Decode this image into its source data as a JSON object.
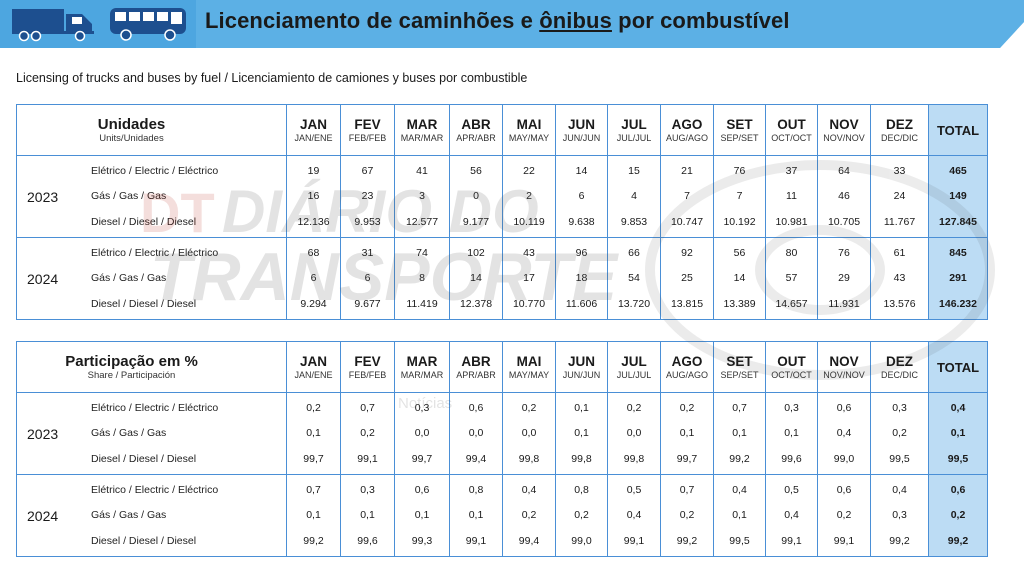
{
  "header": {
    "title_before": "Licenciamento de caminhões e ",
    "title_highlight": "ônibus",
    "title_after": " por combustível",
    "icons": [
      "truck-icon",
      "bus-icon"
    ],
    "band_color": "#4da6e0"
  },
  "subtitle": "Licensing of trucks and buses by fuel / Licenciamiento de camiones y buses por combustible",
  "watermark": {
    "line1": "DIÁRIO DO",
    "line2": "TRANSPORTE",
    "line3": "Notícias"
  },
  "months": [
    {
      "main": "JAN",
      "sub": "JAN/ENE"
    },
    {
      "main": "FEV",
      "sub": "FEB/FEB"
    },
    {
      "main": "MAR",
      "sub": "MAR/MAR"
    },
    {
      "main": "ABR",
      "sub": "APR/ABR"
    },
    {
      "main": "MAI",
      "sub": "MAY/MAY"
    },
    {
      "main": "JUN",
      "sub": "JUN/JUN"
    },
    {
      "main": "JUL",
      "sub": "JUL/JUL"
    },
    {
      "main": "AGO",
      "sub": "AUG/AGO"
    },
    {
      "main": "SET",
      "sub": "SEP/SET"
    },
    {
      "main": "OUT",
      "sub": "OCT/OCT"
    },
    {
      "main": "NOV",
      "sub": "NOV/NOV"
    },
    {
      "main": "DEZ",
      "sub": "DEC/DIC"
    }
  ],
  "total_label": "TOTAL",
  "fuels": [
    "Elétrico / Electric / Eléctrico",
    "Gás / Gas / Gas",
    "Diesel / Diesel / Diesel"
  ],
  "units_table": {
    "title": "Unidades",
    "subtitle": "Units/Unidades",
    "rows": [
      {
        "year": "2023",
        "values": [
          [
            "19",
            "67",
            "41",
            "56",
            "22",
            "14",
            "15",
            "21",
            "76",
            "37",
            "64",
            "33"
          ],
          [
            "16",
            "23",
            "3",
            "0",
            "2",
            "6",
            "4",
            "7",
            "7",
            "11",
            "46",
            "24"
          ],
          [
            "12.136",
            "9.953",
            "12.577",
            "9.177",
            "10.119",
            "9.638",
            "9.853",
            "10.747",
            "10.192",
            "10.981",
            "10.705",
            "11.767"
          ]
        ],
        "totals": [
          "465",
          "149",
          "127.845"
        ]
      },
      {
        "year": "2024",
        "values": [
          [
            "68",
            "31",
            "74",
            "102",
            "43",
            "96",
            "66",
            "92",
            "56",
            "80",
            "76",
            "61"
          ],
          [
            "6",
            "6",
            "8",
            "14",
            "17",
            "18",
            "54",
            "25",
            "14",
            "57",
            "29",
            "43"
          ],
          [
            "9.294",
            "9.677",
            "11.419",
            "12.378",
            "10.770",
            "11.606",
            "13.720",
            "13.815",
            "13.389",
            "14.657",
            "11.931",
            "13.576"
          ]
        ],
        "totals": [
          "845",
          "291",
          "146.232"
        ]
      }
    ]
  },
  "share_table": {
    "title": "Participação em %",
    "subtitle": "Share / Participación",
    "rows": [
      {
        "year": "2023",
        "values": [
          [
            "0,2",
            "0,7",
            "0,3",
            "0,6",
            "0,2",
            "0,1",
            "0,2",
            "0,2",
            "0,7",
            "0,3",
            "0,6",
            "0,3"
          ],
          [
            "0,1",
            "0,2",
            "0,0",
            "0,0",
            "0,0",
            "0,1",
            "0,0",
            "0,1",
            "0,1",
            "0,1",
            "0,4",
            "0,2"
          ],
          [
            "99,7",
            "99,1",
            "99,7",
            "99,4",
            "99,8",
            "99,8",
            "99,8",
            "99,7",
            "99,2",
            "99,6",
            "99,0",
            "99,5"
          ]
        ],
        "totals": [
          "0,4",
          "0,1",
          "99,5"
        ]
      },
      {
        "year": "2024",
        "values": [
          [
            "0,7",
            "0,3",
            "0,6",
            "0,8",
            "0,4",
            "0,8",
            "0,5",
            "0,7",
            "0,4",
            "0,5",
            "0,6",
            "0,4"
          ],
          [
            "0,1",
            "0,1",
            "0,1",
            "0,1",
            "0,2",
            "0,2",
            "0,4",
            "0,2",
            "0,1",
            "0,4",
            "0,2",
            "0,3"
          ],
          [
            "99,2",
            "99,6",
            "99,3",
            "99,1",
            "99,4",
            "99,0",
            "99,1",
            "99,2",
            "99,5",
            "99,1",
            "99,1",
            "99,2"
          ]
        ],
        "totals": [
          "0,6",
          "0,2",
          "99,2"
        ]
      }
    ]
  }
}
